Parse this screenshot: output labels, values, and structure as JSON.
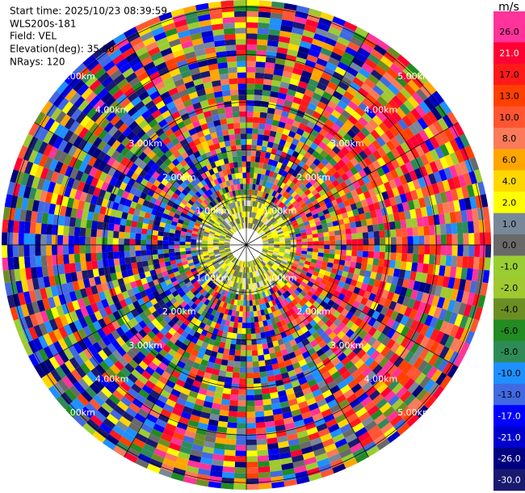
{
  "header": {
    "lines": [
      "Start time: 2025/10/23 08:39:59",
      "WLS200s-181",
      "Field: VEL",
      "Elevation(deg): 35.00",
      "NRays: 120"
    ]
  },
  "chart_data": {
    "type": "ppi",
    "colorbar": {
      "title": "m/s",
      "ticks": [
        {
          "value": 26,
          "label": "26.0"
        },
        {
          "value": 21,
          "label": "21.0"
        },
        {
          "value": 17,
          "label": "17.0"
        },
        {
          "value": 13,
          "label": "13.0"
        },
        {
          "value": 10,
          "label": "10.0"
        },
        {
          "value": 8,
          "label": "8.0"
        },
        {
          "value": 6,
          "label": "6.0"
        },
        {
          "value": 4,
          "label": "4.0"
        },
        {
          "value": 2,
          "label": "2.0"
        },
        {
          "value": 1,
          "label": "1.0"
        },
        {
          "value": 0,
          "label": "0.0"
        },
        {
          "value": -1,
          "label": "-1.0"
        },
        {
          "value": -2,
          "label": "-2.0"
        },
        {
          "value": -4,
          "label": "-4.0"
        },
        {
          "value": -6,
          "label": "-6.0"
        },
        {
          "value": -8,
          "label": "-8.0"
        },
        {
          "value": -10,
          "label": "-10.0"
        },
        {
          "value": -13,
          "label": "-13.0"
        },
        {
          "value": -17,
          "label": "-17.0"
        },
        {
          "value": -21,
          "label": "-21.0"
        },
        {
          "value": -26,
          "label": "-26.0"
        },
        {
          "value": -30,
          "label": "-30.0"
        }
      ],
      "colors": [
        "#ff3399",
        "#ff0033",
        "#ff1a1a",
        "#ff4000",
        "#ff5533",
        "#fa7a5a",
        "#ffa500",
        "#ffd700",
        "#ffff00",
        "#778899",
        "#696969",
        "#9acd32",
        "#a0c830",
        "#6b8e23",
        "#228b22",
        "#2e8b57",
        "#1e90ff",
        "#4169e1",
        "#0000ff",
        "#0000cd",
        "#000080",
        "#191970"
      ]
    },
    "rlim": [
      0,
      5.15
    ],
    "range_rings": [
      {
        "value": 1,
        "label": "1.00km"
      },
      {
        "value": 2,
        "label": "2.00km"
      },
      {
        "value": 3,
        "label": "3.00km"
      },
      {
        "value": 4,
        "label": "4.00km"
      },
      {
        "value": 5,
        "label": "5.00km"
      }
    ]
  }
}
